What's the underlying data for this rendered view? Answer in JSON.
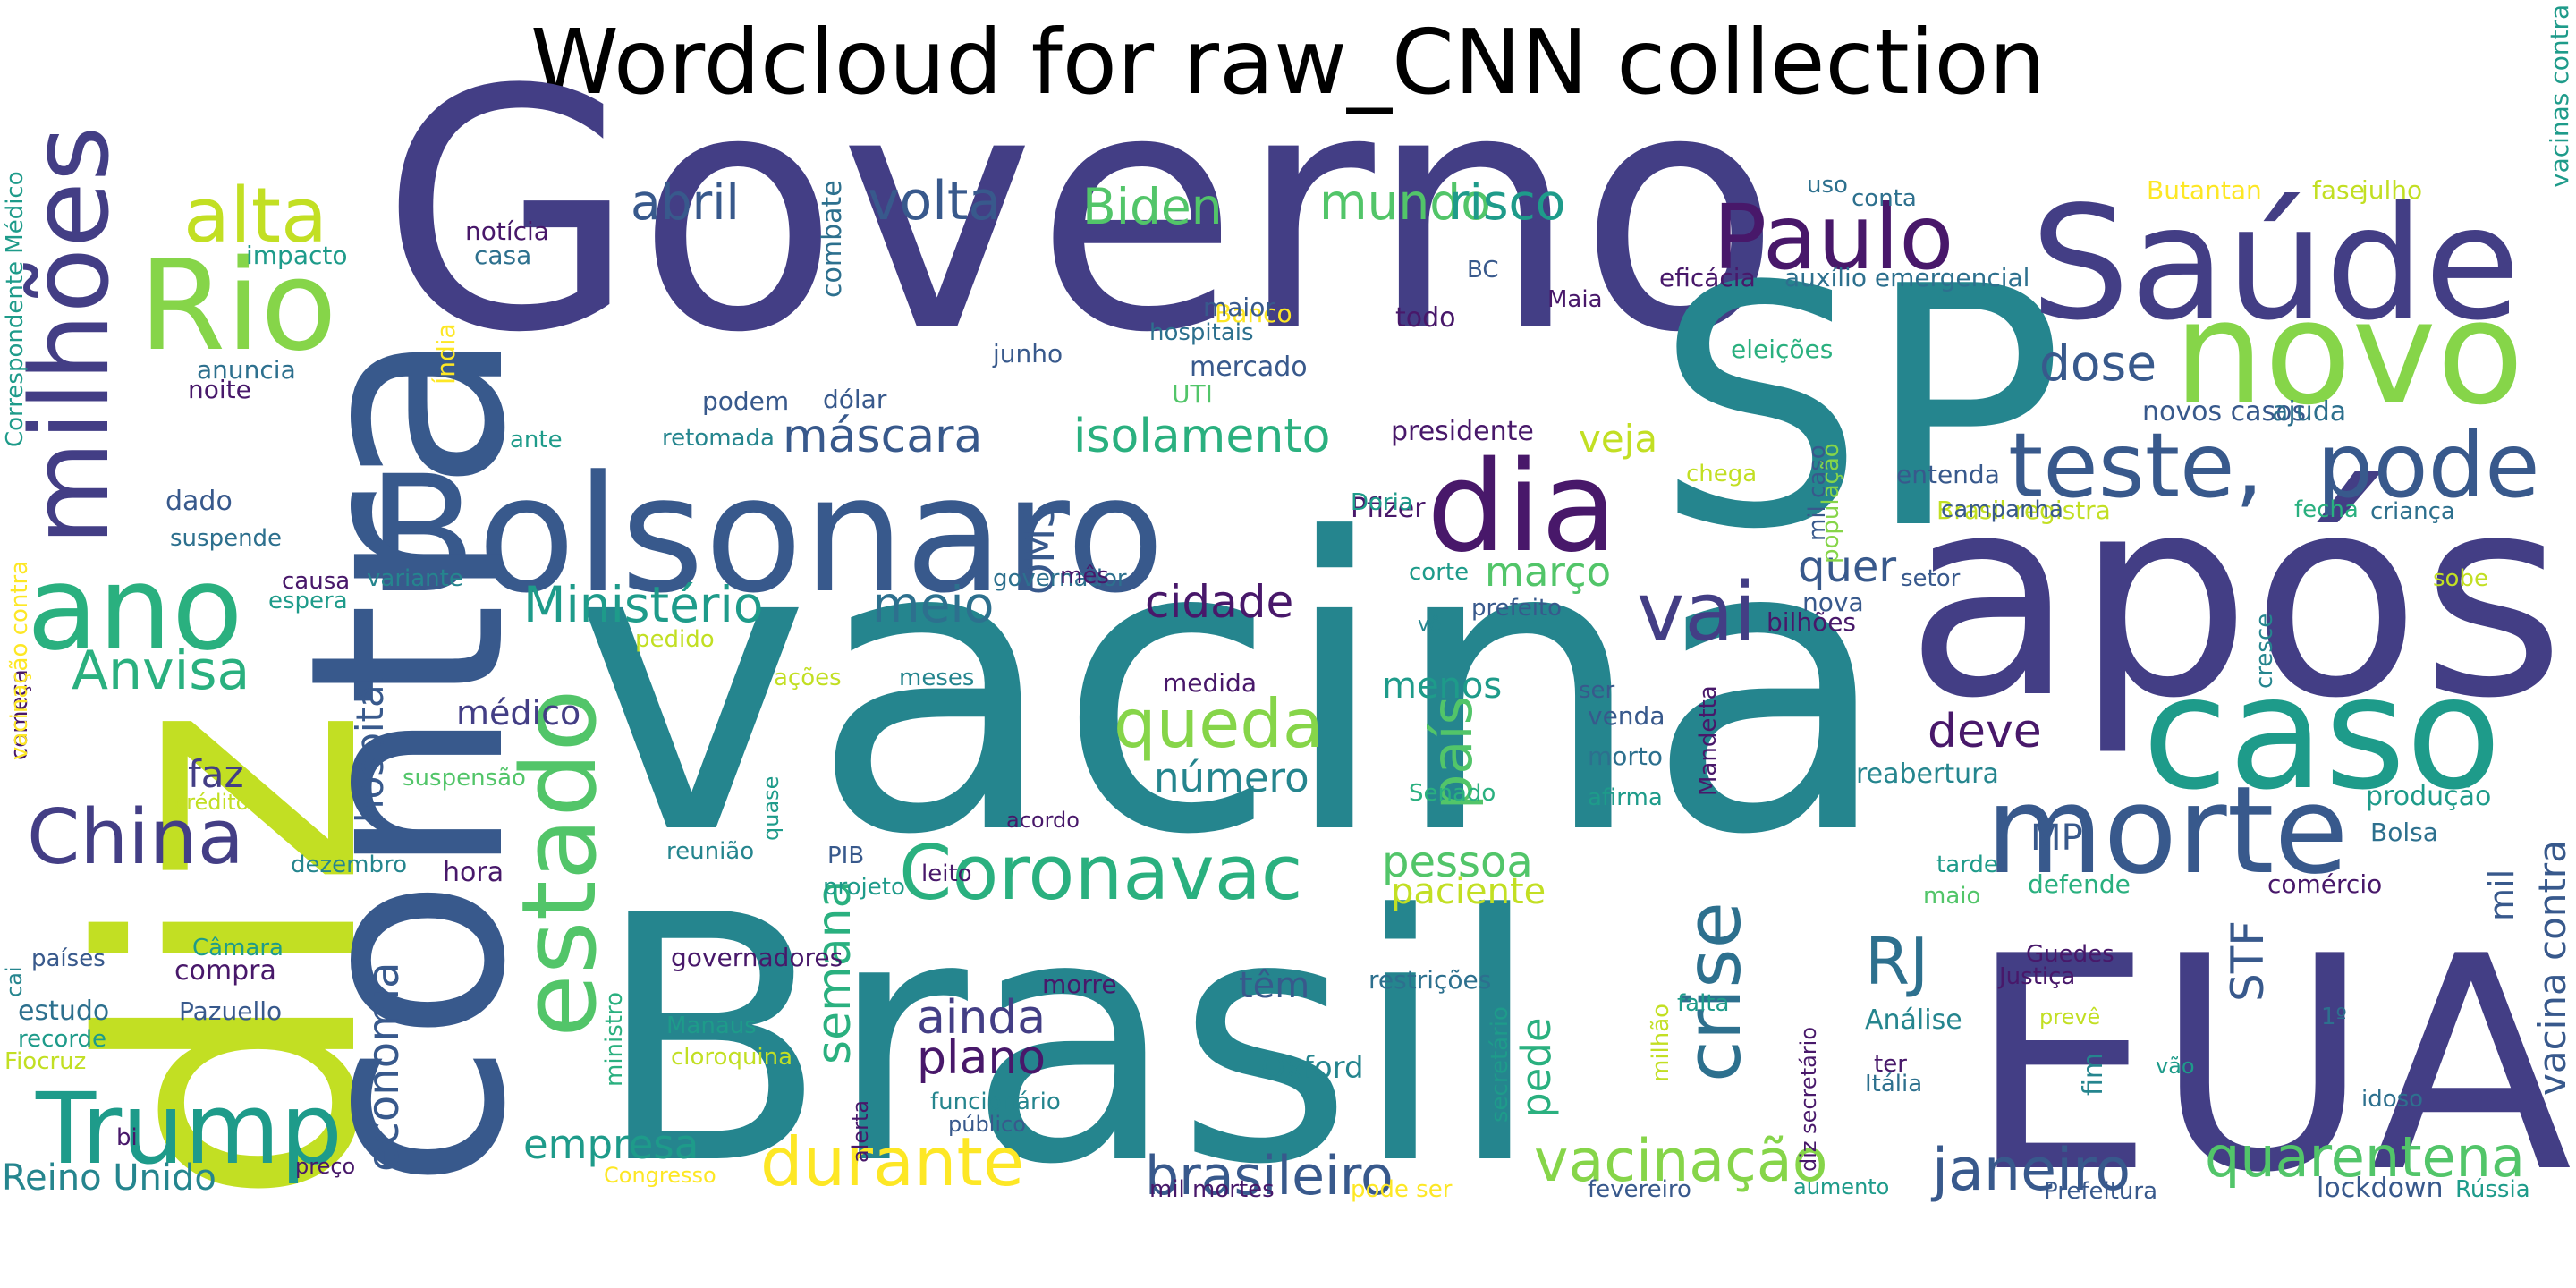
{
  "title": "Wordcloud for raw_CNN collection",
  "colors": {
    "v1": "#48186a",
    "v2": "#433e85",
    "v3": "#38598c",
    "v4": "#2d708e",
    "v5": "#25858e",
    "v6": "#1e9b8a",
    "v7": "#2ab07f",
    "v8": "#52c569",
    "v9": "#86d549",
    "v10": "#c2df23",
    "v11": "#fde725"
  },
  "words": [
    {
      "text": "Governo",
      "color": "v2"
    },
    {
      "text": "vacina",
      "color": "v5"
    },
    {
      "text": "Brasil",
      "color": "v5"
    },
    {
      "text": "diz",
      "color": "v10"
    },
    {
      "text": "SP",
      "color": "v5"
    },
    {
      "text": "após",
      "color": "v2"
    },
    {
      "text": "EUA",
      "color": "v2"
    },
    {
      "text": "Bolsonaro",
      "color": "v3"
    },
    {
      "text": "Saúde",
      "color": "v2"
    },
    {
      "text": "contra",
      "color": "v3"
    },
    {
      "text": "caso",
      "color": "v6"
    },
    {
      "text": "novo",
      "color": "v9"
    },
    {
      "text": "morte",
      "color": "v3"
    },
    {
      "text": "dia",
      "color": "v1"
    },
    {
      "text": "Rio",
      "color": "v9"
    },
    {
      "text": "ano",
      "color": "v7"
    },
    {
      "text": "teste,",
      "color": "v3"
    },
    {
      "text": "pode",
      "color": "v3"
    },
    {
      "text": "Paulo",
      "color": "v1"
    },
    {
      "text": "Trump",
      "color": "v6"
    },
    {
      "text": "milhões",
      "color": "v2"
    },
    {
      "text": "estado",
      "color": "v8"
    },
    {
      "text": "alta",
      "color": "v10"
    },
    {
      "text": "China",
      "color": "v2"
    },
    {
      "text": "vai",
      "color": "v2"
    },
    {
      "text": "Coronavac",
      "color": "v7"
    },
    {
      "text": "crise",
      "color": "v4"
    },
    {
      "text": "queda",
      "color": "v9"
    },
    {
      "text": "durante",
      "color": "v11"
    },
    {
      "text": "vacinação",
      "color": "v9"
    },
    {
      "text": "janeiro",
      "color": "v3"
    },
    {
      "text": "quarentena",
      "color": "v8"
    },
    {
      "text": "RJ",
      "color": "v4"
    },
    {
      "text": "Anvisa",
      "color": "v7"
    },
    {
      "text": "Ministério",
      "color": "v6"
    },
    {
      "text": "meio",
      "color": "v4"
    },
    {
      "text": "brasileiro",
      "color": "v3"
    },
    {
      "text": "volta",
      "color": "v3"
    },
    {
      "text": "mundo",
      "color": "v8"
    },
    {
      "text": "risco",
      "color": "v6"
    },
    {
      "text": "Biden",
      "color": "v8"
    },
    {
      "text": "abril",
      "color": "v3"
    },
    {
      "text": "isolamento",
      "color": "v7"
    },
    {
      "text": "máscara",
      "color": "v3"
    },
    {
      "text": "dose",
      "color": "v3"
    },
    {
      "text": "cidade",
      "color": "v1"
    },
    {
      "text": "país",
      "color": "v8"
    },
    {
      "text": "plano",
      "color": "v1"
    },
    {
      "text": "ainda",
      "color": "v2"
    },
    {
      "text": "economia",
      "color": "v3"
    },
    {
      "text": "semana",
      "color": "v7"
    },
    {
      "text": "pessoa",
      "color": "v8"
    },
    {
      "text": "número",
      "color": "v5"
    },
    {
      "text": "empresa",
      "color": "v6"
    },
    {
      "text": "Reino Unido",
      "color": "v5"
    },
    {
      "text": "março",
      "color": "v8"
    },
    {
      "text": "veja",
      "color": "v10"
    },
    {
      "text": "OMS",
      "color": "v3"
    },
    {
      "text": "hospital",
      "color": "v3"
    },
    {
      "text": "faz",
      "color": "v2"
    },
    {
      "text": "médico",
      "color": "v2"
    },
    {
      "text": "deve",
      "color": "v1"
    },
    {
      "text": "quer",
      "color": "v3"
    },
    {
      "text": "STF",
      "color": "v3"
    },
    {
      "text": "pede",
      "color": "v7"
    },
    {
      "text": "paciente",
      "color": "v10"
    },
    {
      "text": "vacina contra",
      "color": "v3"
    },
    {
      "text": "mil",
      "color": "v3"
    },
    {
      "text": "têm",
      "color": "v3"
    },
    {
      "text": "menos",
      "color": "v6"
    },
    {
      "text": "Oxford",
      "color": "v5"
    },
    {
      "text": "MP",
      "color": "v3"
    },
    {
      "text": "combate",
      "color": "v4"
    },
    {
      "text": "notícia",
      "color": "v1"
    },
    {
      "text": "casa",
      "color": "v4"
    },
    {
      "text": "impacto",
      "color": "v6"
    },
    {
      "text": "anuncia",
      "color": "v4"
    },
    {
      "text": "noite",
      "color": "v1"
    },
    {
      "text": "Índia",
      "color": "v11"
    },
    {
      "text": "Banco",
      "color": "v11"
    },
    {
      "text": "junho",
      "color": "v3"
    },
    {
      "text": "maior",
      "color": "v3"
    },
    {
      "text": "hospitais",
      "color": "v4"
    },
    {
      "text": "mercado",
      "color": "v3"
    },
    {
      "text": "UTI",
      "color": "v8"
    },
    {
      "text": "todo",
      "color": "v1"
    },
    {
      "text": "BC",
      "color": "v3"
    },
    {
      "text": "Maia",
      "color": "v1"
    },
    {
      "text": "eficácia",
      "color": "v1"
    },
    {
      "text": "auxílio emergencial",
      "color": "v4"
    },
    {
      "text": "eleições",
      "color": "v7"
    },
    {
      "text": "uso",
      "color": "v4"
    },
    {
      "text": "conta",
      "color": "v4"
    },
    {
      "text": "Butantan",
      "color": "v11"
    },
    {
      "text": "fase",
      "color": "v10"
    },
    {
      "text": "julho",
      "color": "v10"
    },
    {
      "text": "vacinas contra",
      "color": "v6"
    },
    {
      "text": "podem",
      "color": "v3"
    },
    {
      "text": "dólar",
      "color": "v3"
    },
    {
      "text": "retomada",
      "color": "v5"
    },
    {
      "text": "ante",
      "color": "v6"
    },
    {
      "text": "dado",
      "color": "v3"
    },
    {
      "text": "suspende",
      "color": "v4"
    },
    {
      "text": "causa",
      "color": "v1"
    },
    {
      "text": "espera",
      "color": "v6"
    },
    {
      "text": "variante",
      "color": "v5"
    },
    {
      "text": "começa",
      "color": "v1"
    },
    {
      "text": "crédito",
      "color": "v10"
    },
    {
      "text": "suspensão",
      "color": "v8"
    },
    {
      "text": "dezembro",
      "color": "v5"
    },
    {
      "text": "hora",
      "color": "v1"
    },
    {
      "text": "Câmara",
      "color": "v6"
    },
    {
      "text": "países",
      "color": "v3"
    },
    {
      "text": "cai",
      "color": "v5"
    },
    {
      "text": "compra",
      "color": "v1"
    },
    {
      "text": "estudo",
      "color": "v4"
    },
    {
      "text": "Pazuello",
      "color": "v3"
    },
    {
      "text": "recorde",
      "color": "v6"
    },
    {
      "text": "Fiocruz",
      "color": "v10"
    },
    {
      "text": "bi",
      "color": "v1"
    },
    {
      "text": "preço",
      "color": "v1"
    },
    {
      "text": "Congresso",
      "color": "v11"
    },
    {
      "text": "Correspondente Médico",
      "color": "v6"
    },
    {
      "text": "vacinação contra",
      "color": "v11"
    },
    {
      "text": "presidente",
      "color": "v1"
    },
    {
      "text": "Pfizer",
      "color": "v1"
    },
    {
      "text": "Doria",
      "color": "v6"
    },
    {
      "text": "chega",
      "color": "v10"
    },
    {
      "text": "governador",
      "color": "v4"
    },
    {
      "text": "corte",
      "color": "v6"
    },
    {
      "text": "prefeito",
      "color": "v3"
    },
    {
      "text": "mês",
      "color": "v1"
    },
    {
      "text": "pedido",
      "color": "v10"
    },
    {
      "text": "meses",
      "color": "v5"
    },
    {
      "text": "ações",
      "color": "v10"
    },
    {
      "text": "medida",
      "color": "v1"
    },
    {
      "text": "vê",
      "color": "v5"
    },
    {
      "text": "bilhões",
      "color": "v1"
    },
    {
      "text": "nova",
      "color": "v3"
    },
    {
      "text": "mil caso",
      "color": "v3"
    },
    {
      "text": "entenda",
      "color": "v3"
    },
    {
      "text": "Brasil registra",
      "color": "v10"
    },
    {
      "text": "campanha",
      "color": "v3"
    },
    {
      "text": "novos casos",
      "color": "v3"
    },
    {
      "text": "ajuda",
      "color": "v4"
    },
    {
      "text": "fecha",
      "color": "v7"
    },
    {
      "text": "criança",
      "color": "v4"
    },
    {
      "text": "população",
      "color": "v9"
    },
    {
      "text": "cresce",
      "color": "v5"
    },
    {
      "text": "setor",
      "color": "v3"
    },
    {
      "text": "sobe",
      "color": "v10"
    },
    {
      "text": "ser",
      "color": "v3"
    },
    {
      "text": "venda",
      "color": "v3"
    },
    {
      "text": "morto",
      "color": "v4"
    },
    {
      "text": "afirma",
      "color": "v6"
    },
    {
      "text": "Senado",
      "color": "v7"
    },
    {
      "text": "Mandetta",
      "color": "v1"
    },
    {
      "text": "quase",
      "color": "v6"
    },
    {
      "text": "acordo",
      "color": "v1"
    },
    {
      "text": "reunião",
      "color": "v5"
    },
    {
      "text": "PIB",
      "color": "v3"
    },
    {
      "text": "projeto",
      "color": "v6"
    },
    {
      "text": "leito",
      "color": "v1"
    },
    {
      "text": "governadores",
      "color": "v1"
    },
    {
      "text": "ministro",
      "color": "v7"
    },
    {
      "text": "morre",
      "color": "v1"
    },
    {
      "text": "Manaus",
      "color": "v6"
    },
    {
      "text": "cloroquina",
      "color": "v10"
    },
    {
      "text": "alerta",
      "color": "v1"
    },
    {
      "text": "funcionário",
      "color": "v5"
    },
    {
      "text": "público",
      "color": "v3"
    },
    {
      "text": "restrições",
      "color": "v4"
    },
    {
      "text": "secretário",
      "color": "v6"
    },
    {
      "text": "mil mortes",
      "color": "v1"
    },
    {
      "text": "pode ser",
      "color": "v11"
    },
    {
      "text": "milhão",
      "color": "v10"
    },
    {
      "text": "falta",
      "color": "v6"
    },
    {
      "text": "diz secretário",
      "color": "v1"
    },
    {
      "text": "fevereiro",
      "color": "v3"
    },
    {
      "text": "aumento",
      "color": "v6"
    },
    {
      "text": "tarde",
      "color": "v6"
    },
    {
      "text": "maio",
      "color": "v8"
    },
    {
      "text": "defende",
      "color": "v7"
    },
    {
      "text": "comércio",
      "color": "v1"
    },
    {
      "text": "reabertura",
      "color": "v5"
    },
    {
      "text": "produção",
      "color": "v6"
    },
    {
      "text": "Bolsa",
      "color": "v4"
    },
    {
      "text": "Guedes",
      "color": "v1"
    },
    {
      "text": "Justiça",
      "color": "v1"
    },
    {
      "text": "Análise",
      "color": "v5"
    },
    {
      "text": "ter",
      "color": "v1"
    },
    {
      "text": "Itália",
      "color": "v4"
    },
    {
      "text": "prevê",
      "color": "v10"
    },
    {
      "text": "1º",
      "color": "v4"
    },
    {
      "text": "fim",
      "color": "v5"
    },
    {
      "text": "vão",
      "color": "v6"
    },
    {
      "text": "idoso",
      "color": "v4"
    },
    {
      "text": "Prefeitura",
      "color": "v3"
    },
    {
      "text": "lockdown",
      "color": "v3"
    },
    {
      "text": "Rússia",
      "color": "v6"
    }
  ]
}
